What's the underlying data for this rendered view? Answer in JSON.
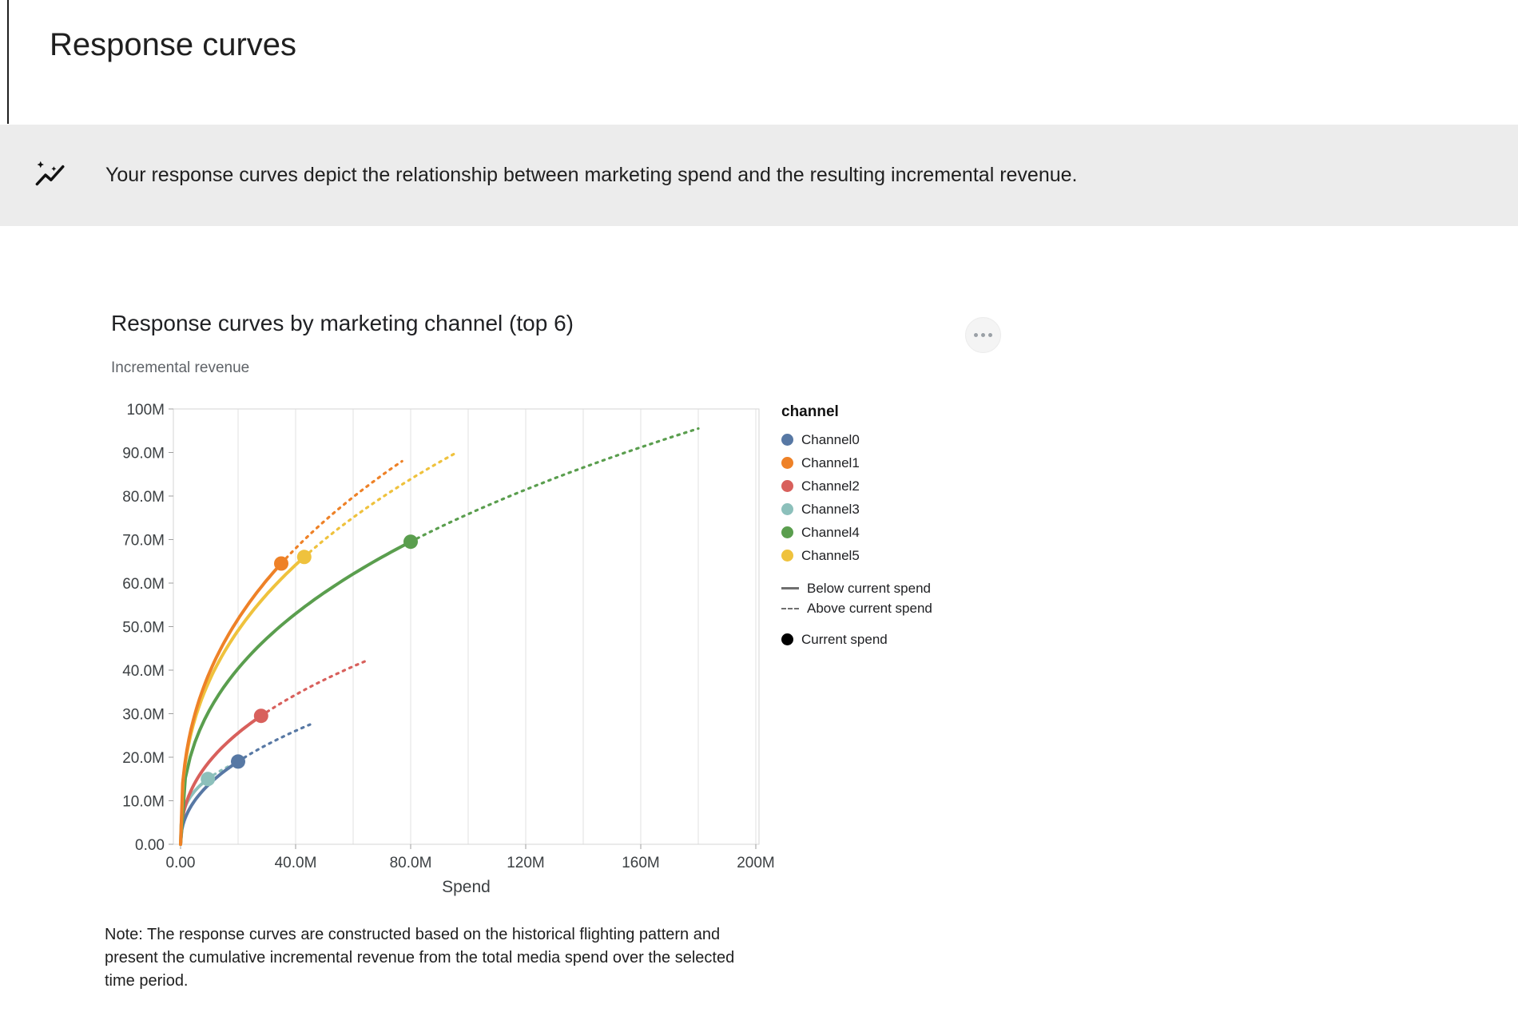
{
  "page": {
    "title": "Response curves"
  },
  "banner": {
    "icon": "insights-icon",
    "text": "Your response curves depict the relationship between marketing spend and the resulting incremental revenue."
  },
  "card": {
    "menu_icon": "more-options-icon"
  },
  "chart_data": {
    "type": "line",
    "title": "Response curves by marketing channel (top 6)",
    "xlabel": "Spend",
    "ylabel": "Incremental revenue",
    "units": "millions",
    "xlim": [
      0,
      207
    ],
    "ylim": [
      0,
      100
    ],
    "x_ticks": [
      0,
      40,
      80,
      120,
      160,
      200
    ],
    "x_tick_labels": [
      "0.00",
      "40.0M",
      "80.0M",
      "120M",
      "160M",
      "200M"
    ],
    "y_ticks": [
      0,
      10,
      20,
      30,
      40,
      50,
      60,
      70,
      80,
      90,
      100
    ],
    "y_tick_labels": [
      "0.00",
      "10.0M",
      "20.0M",
      "30.0M",
      "40.0M",
      "50.0M",
      "60.0M",
      "70.0M",
      "80.0M",
      "90.0M",
      "100M"
    ],
    "grid": {
      "vertical_interval_m": 20,
      "horizontal": false
    },
    "legend": {
      "header": "channel",
      "position": "right",
      "below_label": "Below current spend",
      "above_label": "Above current spend",
      "current_label": "Current spend"
    },
    "curve_style": {
      "solid": "below current spend",
      "dashed": "above current spend",
      "marker": "current spend point"
    },
    "series": [
      {
        "name": "Channel0",
        "color": "#5778a4",
        "current_spend": {
          "spend_m": 20,
          "revenue_m": 19
        },
        "curve_end": {
          "spend_m": 45,
          "revenue_m": 27.5
        }
      },
      {
        "name": "Channel1",
        "color": "#ee8127",
        "current_spend": {
          "spend_m": 35,
          "revenue_m": 64.5
        },
        "curve_end": {
          "spend_m": 77,
          "revenue_m": 88
        }
      },
      {
        "name": "Channel2",
        "color": "#d8605c",
        "current_spend": {
          "spend_m": 28,
          "revenue_m": 29.5
        },
        "curve_end": {
          "spend_m": 64,
          "revenue_m": 42
        }
      },
      {
        "name": "Channel3",
        "color": "#8cc0bb",
        "current_spend": {
          "spend_m": 9.5,
          "revenue_m": 15
        },
        "curve_end": {
          "spend_m": 17,
          "revenue_m": 18
        }
      },
      {
        "name": "Channel4",
        "color": "#5a9e4e",
        "current_spend": {
          "spend_m": 80,
          "revenue_m": 69.5
        },
        "curve_end": {
          "spend_m": 180,
          "revenue_m": 95.5
        }
      },
      {
        "name": "Channel5",
        "color": "#efc23d",
        "current_spend": {
          "spend_m": 43,
          "revenue_m": 66
        },
        "curve_end": {
          "spend_m": 96,
          "revenue_m": 90
        }
      }
    ],
    "note": "Note: The response curves are constructed based on the historical flighting pattern and present the cumulative incremental revenue from the total media spend over the selected time period."
  }
}
